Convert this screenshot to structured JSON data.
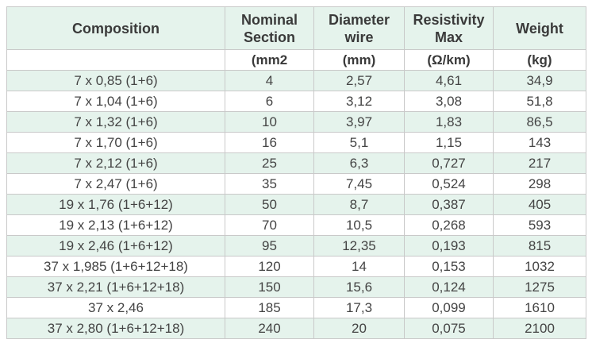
{
  "headers": {
    "composition": "Composition",
    "nominal_section": "Nominal\nSection",
    "diameter_wire": "Diameter\nwire",
    "resistivity": "Resistivity\nMax",
    "weight": "Weight"
  },
  "units": {
    "composition": "",
    "nominal_section": "(mm2",
    "diameter_wire": "(mm)",
    "resistivity": "(Ω/km)",
    "weight": "(kg)"
  },
  "rows": [
    [
      "7 x 0,85 (1+6)",
      "4",
      "2,57",
      "4,61",
      "34,9"
    ],
    [
      "7 x 1,04 (1+6)",
      "6",
      "3,12",
      "3,08",
      "51,8"
    ],
    [
      "7 x 1,32 (1+6)",
      "10",
      "3,97",
      "1,83",
      "86,5"
    ],
    [
      "7 x 1,70 (1+6)",
      "16",
      "5,1",
      "1,15",
      "143"
    ],
    [
      "7 x 2,12 (1+6)",
      "25",
      "6,3",
      "0,727",
      "217"
    ],
    [
      "7 x 2,47 (1+6)",
      "35",
      "7,45",
      "0,524",
      "298"
    ],
    [
      "19 x 1,76 (1+6+12)",
      "50",
      "8,7",
      "0,387",
      "405"
    ],
    [
      "19 x 2,13 (1+6+12)",
      "70",
      "10,5",
      "0,268",
      "593"
    ],
    [
      "19 x 2,46 (1+6+12)",
      "95",
      "12,35",
      "0,193",
      "815"
    ],
    [
      "37 x 1,985 (1+6+12+18)",
      "120",
      "14",
      "0,153",
      "1032"
    ],
    [
      "37 x 2,21 (1+6+12+18)",
      "150",
      "15,6",
      "0,124",
      "1275"
    ],
    [
      "37 x 2,46",
      "185",
      "17,3",
      "0,099",
      "1610"
    ],
    [
      "37 x 2,80 (1+6+12+18)",
      "240",
      "20",
      "0,075",
      "2100"
    ]
  ],
  "colors": {
    "row_stripe": "#e5f3ec",
    "border": "#c9c9c9"
  }
}
